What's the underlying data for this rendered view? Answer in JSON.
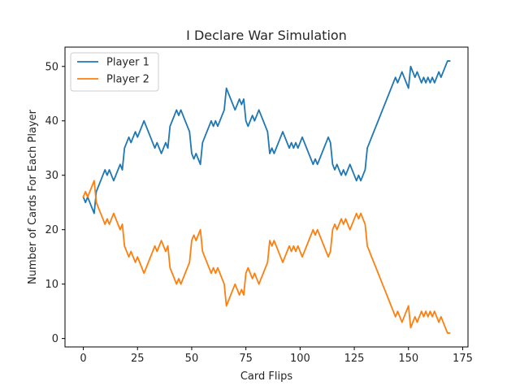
{
  "chart_data": {
    "type": "line",
    "title": "I Declare War Simulation",
    "xlabel": "Card Flips",
    "ylabel": "Number of Cards For Each Player",
    "xlim": [
      -8.45,
      177.45
    ],
    "ylim": [
      -1.55,
      53.55
    ],
    "xticks": [
      0,
      25,
      50,
      75,
      100,
      125,
      150,
      175
    ],
    "yticks": [
      0,
      10,
      20,
      30,
      40,
      50
    ],
    "grid": false,
    "legend_position": "top-left",
    "series": [
      {
        "name": "Player 1",
        "color": "#1f77b4",
        "x": [
          0,
          1,
          2,
          3,
          4,
          5,
          6,
          7,
          8,
          9,
          10,
          11,
          12,
          13,
          14,
          15,
          16,
          17,
          18,
          19,
          20,
          21,
          22,
          23,
          24,
          25,
          26,
          27,
          28,
          29,
          30,
          31,
          32,
          33,
          34,
          35,
          36,
          37,
          38,
          39,
          40,
          41,
          42,
          43,
          44,
          45,
          46,
          47,
          48,
          49,
          50,
          51,
          52,
          53,
          54,
          55,
          56,
          57,
          58,
          59,
          60,
          61,
          62,
          63,
          64,
          65,
          66,
          67,
          68,
          69,
          70,
          71,
          72,
          73,
          74,
          75,
          76,
          77,
          78,
          79,
          80,
          81,
          82,
          83,
          84,
          85,
          86,
          87,
          88,
          89,
          90,
          91,
          92,
          93,
          94,
          95,
          96,
          97,
          98,
          99,
          100,
          101,
          102,
          103,
          104,
          105,
          106,
          107,
          108,
          109,
          110,
          111,
          112,
          113,
          114,
          115,
          116,
          117,
          118,
          119,
          120,
          121,
          122,
          123,
          124,
          125,
          126,
          127,
          128,
          129,
          130,
          131,
          132,
          133,
          134,
          135,
          136,
          137,
          138,
          139,
          140,
          141,
          142,
          143,
          144,
          145,
          146,
          147,
          148,
          149,
          150,
          151,
          152,
          153,
          154,
          155,
          156,
          157,
          158,
          159,
          160,
          161,
          162,
          163,
          164,
          165,
          166,
          167,
          168,
          169
        ],
        "y": [
          26,
          25,
          26,
          25,
          24,
          23,
          27,
          28,
          29,
          30,
          31,
          30,
          31,
          30,
          29,
          30,
          31,
          32,
          31,
          35,
          36,
          37,
          36,
          37,
          38,
          37,
          38,
          39,
          40,
          39,
          38,
          37,
          36,
          35,
          36,
          35,
          34,
          35,
          36,
          35,
          39,
          40,
          41,
          42,
          41,
          42,
          41,
          40,
          39,
          38,
          34,
          33,
          34,
          33,
          32,
          36,
          37,
          38,
          39,
          40,
          39,
          40,
          39,
          40,
          41,
          42,
          46,
          45,
          44,
          43,
          42,
          43,
          44,
          43,
          44,
          40,
          39,
          40,
          41,
          40,
          41,
          42,
          41,
          40,
          39,
          38,
          34,
          35,
          34,
          35,
          36,
          37,
          38,
          37,
          36,
          35,
          36,
          35,
          36,
          35,
          36,
          37,
          36,
          35,
          34,
          33,
          32,
          33,
          32,
          33,
          34,
          35,
          36,
          37,
          36,
          32,
          31,
          32,
          31,
          30,
          31,
          30,
          31,
          32,
          31,
          30,
          29,
          30,
          29,
          30,
          31,
          35,
          36,
          37,
          38,
          39,
          40,
          41,
          42,
          43,
          44,
          45,
          46,
          47,
          48,
          47,
          48,
          49,
          48,
          47,
          46,
          50,
          49,
          48,
          49,
          48,
          47,
          48,
          47,
          48,
          47,
          48,
          47,
          48,
          49,
          48,
          49,
          50,
          51,
          51
        ],
        "note_length": 170
      },
      {
        "name": "Player 2",
        "color": "#ff7f0e",
        "x": [
          0,
          1,
          2,
          3,
          4,
          5,
          6,
          7,
          8,
          9,
          10,
          11,
          12,
          13,
          14,
          15,
          16,
          17,
          18,
          19,
          20,
          21,
          22,
          23,
          24,
          25,
          26,
          27,
          28,
          29,
          30,
          31,
          32,
          33,
          34,
          35,
          36,
          37,
          38,
          39,
          40,
          41,
          42,
          43,
          44,
          45,
          46,
          47,
          48,
          49,
          50,
          51,
          52,
          53,
          54,
          55,
          56,
          57,
          58,
          59,
          60,
          61,
          62,
          63,
          64,
          65,
          66,
          67,
          68,
          69,
          70,
          71,
          72,
          73,
          74,
          75,
          76,
          77,
          78,
          79,
          80,
          81,
          82,
          83,
          84,
          85,
          86,
          87,
          88,
          89,
          90,
          91,
          92,
          93,
          94,
          95,
          96,
          97,
          98,
          99,
          100,
          101,
          102,
          103,
          104,
          105,
          106,
          107,
          108,
          109,
          110,
          111,
          112,
          113,
          114,
          115,
          116,
          117,
          118,
          119,
          120,
          121,
          122,
          123,
          124,
          125,
          126,
          127,
          128,
          129,
          130,
          131,
          132,
          133,
          134,
          135,
          136,
          137,
          138,
          139,
          140,
          141,
          142,
          143,
          144,
          145,
          146,
          147,
          148,
          149,
          150,
          151,
          152,
          153,
          154,
          155,
          156,
          157,
          158,
          159,
          160,
          161,
          162,
          163,
          164,
          165,
          166,
          167,
          168,
          169
        ],
        "y": [
          26,
          27,
          26,
          27,
          28,
          29,
          25,
          24,
          23,
          22,
          21,
          22,
          21,
          22,
          23,
          22,
          21,
          20,
          21,
          17,
          16,
          15,
          16,
          15,
          14,
          15,
          14,
          13,
          12,
          13,
          14,
          15,
          16,
          17,
          16,
          17,
          18,
          17,
          16,
          17,
          13,
          12,
          11,
          10,
          11,
          10,
          11,
          12,
          13,
          14,
          18,
          19,
          18,
          19,
          20,
          16,
          15,
          14,
          13,
          12,
          13,
          12,
          13,
          12,
          11,
          10,
          6,
          7,
          8,
          9,
          10,
          9,
          8,
          9,
          8,
          12,
          13,
          12,
          11,
          12,
          11,
          10,
          11,
          12,
          13,
          14,
          18,
          17,
          18,
          17,
          16,
          15,
          14,
          15,
          16,
          17,
          16,
          17,
          16,
          17,
          16,
          15,
          16,
          17,
          18,
          19,
          20,
          19,
          20,
          19,
          18,
          17,
          16,
          15,
          16,
          20,
          21,
          20,
          21,
          22,
          21,
          22,
          21,
          20,
          21,
          22,
          23,
          22,
          23,
          22,
          21,
          17,
          16,
          15,
          14,
          13,
          12,
          11,
          10,
          9,
          8,
          7,
          6,
          5,
          4,
          5,
          4,
          3,
          4,
          5,
          6,
          2,
          3,
          4,
          3,
          4,
          5,
          4,
          5,
          4,
          5,
          4,
          5,
          4,
          3,
          4,
          3,
          2,
          1,
          1
        ]
      }
    ]
  }
}
